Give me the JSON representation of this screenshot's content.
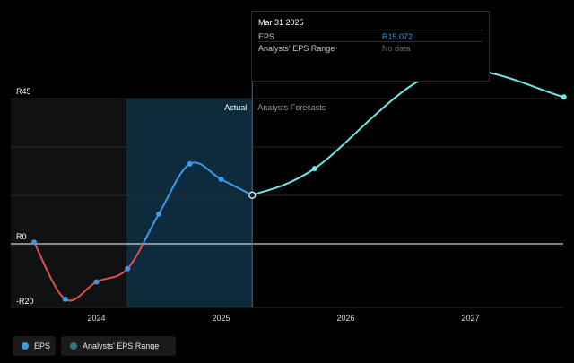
{
  "colors": {
    "background": "#000000",
    "eps_negative": "#e0504a",
    "eps_actual": "#3a9ae8",
    "eps_forecast": "#6ee7e7",
    "range_dot": "#2a7a86",
    "actual_band": "#0e2a3d",
    "grid": "#2a2a2a"
  },
  "tooltip": {
    "date": "Mar 31 2025",
    "rows": [
      {
        "label": "EPS",
        "value": "R15.072"
      },
      {
        "label": "Analysts' EPS Range",
        "value": "No data"
      }
    ]
  },
  "legend": {
    "eps_label": "EPS",
    "eps_icon": "circle-icon",
    "range_label": "Analysts' EPS Range",
    "range_icon": "circle-icon"
  },
  "chart_data": {
    "type": "line",
    "ylim": [
      -20,
      45
    ],
    "y_ticks": [
      {
        "value": 45,
        "label": "R45"
      },
      {
        "value": 0,
        "label": "R0"
      },
      {
        "value": -20,
        "label": "-R20"
      }
    ],
    "x_ticks": [
      {
        "value": 2024,
        "label": "2024"
      },
      {
        "value": 2025,
        "label": "2025"
      },
      {
        "value": 2026,
        "label": "2026"
      },
      {
        "value": 2027,
        "label": "2027"
      }
    ],
    "region_labels": {
      "actual": "Actual",
      "forecast": "Analysts Forecasts"
    },
    "actual_split": 2025.25,
    "series": [
      {
        "name": "EPS",
        "points": [
          {
            "x": 2023.5,
            "y": 0.5
          },
          {
            "x": 2023.75,
            "y": -17.2
          },
          {
            "x": 2024.0,
            "y": -11.8
          },
          {
            "x": 2024.25,
            "y": -7.7
          },
          {
            "x": 2024.5,
            "y": 9.2
          },
          {
            "x": 2024.75,
            "y": 24.8
          },
          {
            "x": 2025.0,
            "y": 20.0
          },
          {
            "x": 2025.25,
            "y": 15.07
          }
        ]
      },
      {
        "name": "Analysts Forecasts",
        "points": [
          {
            "x": 2025.25,
            "y": 15.07
          },
          {
            "x": 2025.75,
            "y": 23.3
          },
          {
            "x": 2026.75,
            "y": 53.4
          },
          {
            "x": 2027.75,
            "y": 45.5
          }
        ]
      }
    ]
  }
}
